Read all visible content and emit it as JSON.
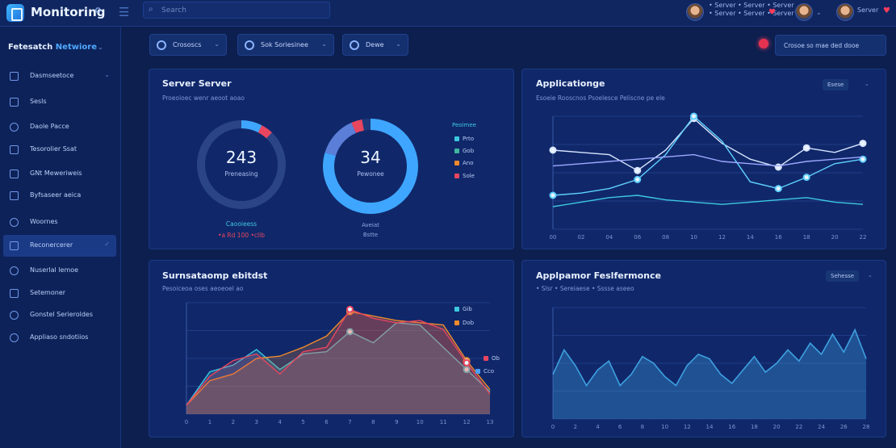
{
  "header": {
    "app_title": "Monitoring",
    "search_placeholder": "Search",
    "notification_text": "• Server • Server • Server\n• Server • Server • Server",
    "user_name": "Server"
  },
  "sidebar": {
    "heading_prefix": "Fetesatch",
    "heading_accent": "Netwiore",
    "items": [
      {
        "label": "Dasmseetoce",
        "icon": "dashboard-icon"
      },
      {
        "label": "Sesls",
        "icon": "server-icon"
      },
      {
        "label": "Daole Pacce",
        "icon": "database-icon"
      },
      {
        "label": "Tesorolier Ssat",
        "icon": "storage-icon"
      },
      {
        "label": "GNt Meweriweis",
        "icon": "network-icon"
      },
      {
        "label": "Byfsaseer aeica",
        "icon": "shield-icon"
      },
      {
        "label": "Woornes",
        "icon": "globe-icon"
      },
      {
        "label": "Reconercerer",
        "icon": "resources-icon"
      },
      {
        "label": "Nuserlal lemoe",
        "icon": "clock-icon"
      },
      {
        "label": "Setemoner",
        "icon": "users-icon"
      },
      {
        "label": "Gonstel Serieroldes",
        "icon": "globe-icon"
      },
      {
        "label": "Appliaso sndotiios",
        "icon": "settings-icon"
      }
    ]
  },
  "filters": [
    {
      "label": "Crososcs"
    },
    {
      "label": "Sok Soriesinee"
    },
    {
      "label": "Dewe"
    }
  ],
  "top_right_button": "Crosoe so mae ded dooe",
  "server_panel": {
    "title": "Server Server",
    "subtitle": "Proeoioec wenr aeoot aoao",
    "gauge1": {
      "value": "243",
      "label": "Preneasing",
      "below": "Caooieess",
      "stats": "•a Rd 100 •cllb"
    },
    "gauge2": {
      "value": "34",
      "label": "Pewonee",
      "below": "Aveiat",
      "stats": "Bstte"
    },
    "legend_title": "Peoimee",
    "legend": [
      {
        "label": "Prto",
        "color": "#3ec8e0"
      },
      {
        "label": "Gob",
        "color": "#3fb6a0"
      },
      {
        "label": "Ano",
        "color": "#f08a2c"
      },
      {
        "label": "Sole",
        "color": "#e8465f"
      }
    ]
  },
  "app_panel": {
    "title": "Applicationge",
    "subtitle": "Esoeie Rooscnos Psoelesce Peliscne pe ele",
    "selector": "Esese",
    "legend": [
      {
        "label": "",
        "color": "#e8465f"
      },
      {
        "label": "",
        "color": "#f08a2c"
      },
      {
        "label": "",
        "color": "#3ec8e0"
      },
      {
        "label": "",
        "color": "#4aa0ff"
      }
    ]
  },
  "summary_panel": {
    "title": "Surnsataomp ebitdst",
    "subtitle": "Pesoiceoa oses aeoeoel ao",
    "legend": [
      {
        "label": "Gib",
        "color": "#3ec8e0"
      },
      {
        "label": "Dob",
        "color": "#f08a2c"
      },
      {
        "label": "Ob",
        "color": "#e8465f"
      },
      {
        "label": "Cco",
        "color": "#4aa0ff"
      }
    ]
  },
  "perf_panel": {
    "title": "Applpamor Feslfermonce",
    "subtitle": "• Slsr • Sereiaese • Sssse aseeo",
    "selector": "Sehesse"
  },
  "chart_data": [
    {
      "type": "line",
      "title": "Applicationge",
      "x": [
        "00",
        "02",
        "04",
        "06",
        "08",
        "10",
        "12",
        "14",
        "16",
        "18",
        "20",
        "22"
      ],
      "ylim": [
        0,
        100
      ],
      "grid": true,
      "legend_placement": "top-right",
      "series": [
        {
          "name": "",
          "values": [
            70,
            68,
            66,
            52,
            70,
            98,
            76,
            62,
            55,
            72,
            68,
            76
          ],
          "color": "#d8e6ff"
        },
        {
          "name": "",
          "values": [
            30,
            32,
            36,
            44,
            66,
            100,
            78,
            42,
            36,
            46,
            58,
            62
          ],
          "color": "#5fd0ff"
        },
        {
          "name": "",
          "values": [
            20,
            24,
            28,
            30,
            26,
            24,
            22,
            24,
            26,
            28,
            24,
            22
          ],
          "color": "#3ec8e0"
        },
        {
          "name": "",
          "values": [
            56,
            58,
            60,
            62,
            64,
            66,
            60,
            58,
            56,
            60,
            62,
            64
          ],
          "color": "#9da8ff"
        }
      ]
    },
    {
      "type": "area",
      "title": "Surnsataomp ebitdst",
      "x": [
        "0",
        "1",
        "2",
        "3",
        "4",
        "5",
        "6",
        "7",
        "8",
        "9",
        "10",
        "11",
        "12",
        "13"
      ],
      "ylim": [
        0,
        100
      ],
      "grid": true,
      "legend_placement": "right",
      "series": [
        {
          "name": "Gib",
          "values": [
            8,
            38,
            44,
            58,
            40,
            54,
            56,
            74,
            64,
            82,
            80,
            60,
            40,
            20
          ],
          "color": "#3ec8e0"
        },
        {
          "name": "Dob",
          "values": [
            8,
            30,
            36,
            50,
            52,
            60,
            70,
            92,
            88,
            84,
            82,
            80,
            48,
            22
          ],
          "color": "#f08a2c"
        },
        {
          "name": "Ob",
          "values": [
            8,
            34,
            48,
            54,
            36,
            56,
            60,
            94,
            86,
            82,
            84,
            76,
            46,
            18
          ],
          "color": "#e8465f"
        }
      ]
    },
    {
      "type": "area",
      "title": "Applpamor Feslfermonce",
      "x": [
        "0",
        "1",
        "2",
        "3",
        "4",
        "5",
        "6",
        "7",
        "8",
        "9",
        "10",
        "11",
        "12",
        "13",
        "14",
        "15",
        "16",
        "17",
        "18",
        "19",
        "20",
        "21",
        "22",
        "23",
        "24",
        "25",
        "26",
        "27",
        "28"
      ],
      "ylim": [
        0,
        100
      ],
      "grid": true,
      "series": [
        {
          "name": "",
          "values": [
            40,
            62,
            48,
            30,
            44,
            52,
            30,
            40,
            56,
            50,
            38,
            30,
            48,
            58,
            54,
            40,
            32,
            44,
            56,
            42,
            50,
            62,
            52,
            68,
            58,
            76,
            60,
            80,
            54
          ],
          "color": "#3ea0e0"
        }
      ]
    }
  ]
}
